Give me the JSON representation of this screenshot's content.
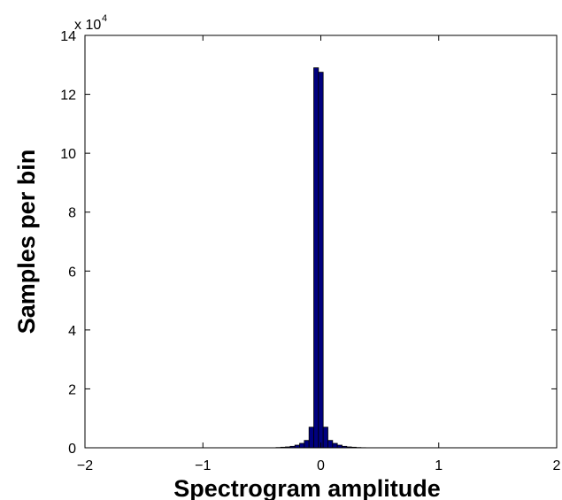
{
  "chart_data": {
    "type": "bar",
    "title": "",
    "xlabel": "Spectrogram amplitude",
    "ylabel": "Samples per bin",
    "xlim": [
      -2,
      2
    ],
    "ylim": [
      0,
      140000
    ],
    "x_ticks": [
      -2,
      -1,
      0,
      1,
      2
    ],
    "x_tick_labels": [
      "−2",
      "−1",
      "0",
      "1",
      "2"
    ],
    "y_ticks": [
      0,
      20000,
      40000,
      60000,
      80000,
      100000,
      120000,
      140000
    ],
    "y_tick_labels": [
      "0",
      "2",
      "4",
      "6",
      "8",
      "10",
      "12",
      "14"
    ],
    "y_exponent_label": "x 10",
    "y_exponent_power": "4",
    "bin_width": 0.04,
    "bin_centers": [
      -0.36,
      -0.32,
      -0.28,
      -0.24,
      -0.2,
      -0.16,
      -0.12,
      -0.08,
      -0.04,
      0.0,
      0.04,
      0.08,
      0.12,
      0.16,
      0.2,
      0.24,
      0.28,
      0.32,
      0.36
    ],
    "values": [
      100,
      200,
      300,
      500,
      900,
      1500,
      2500,
      7000,
      129000,
      127500,
      7000,
      2500,
      1500,
      900,
      500,
      300,
      200,
      100,
      50
    ],
    "colors": {
      "bar_fill": "#00007f",
      "bar_edge": "#000000",
      "axes": "#000000",
      "background": "#ffffff"
    },
    "grid": false,
    "legend": false
  }
}
